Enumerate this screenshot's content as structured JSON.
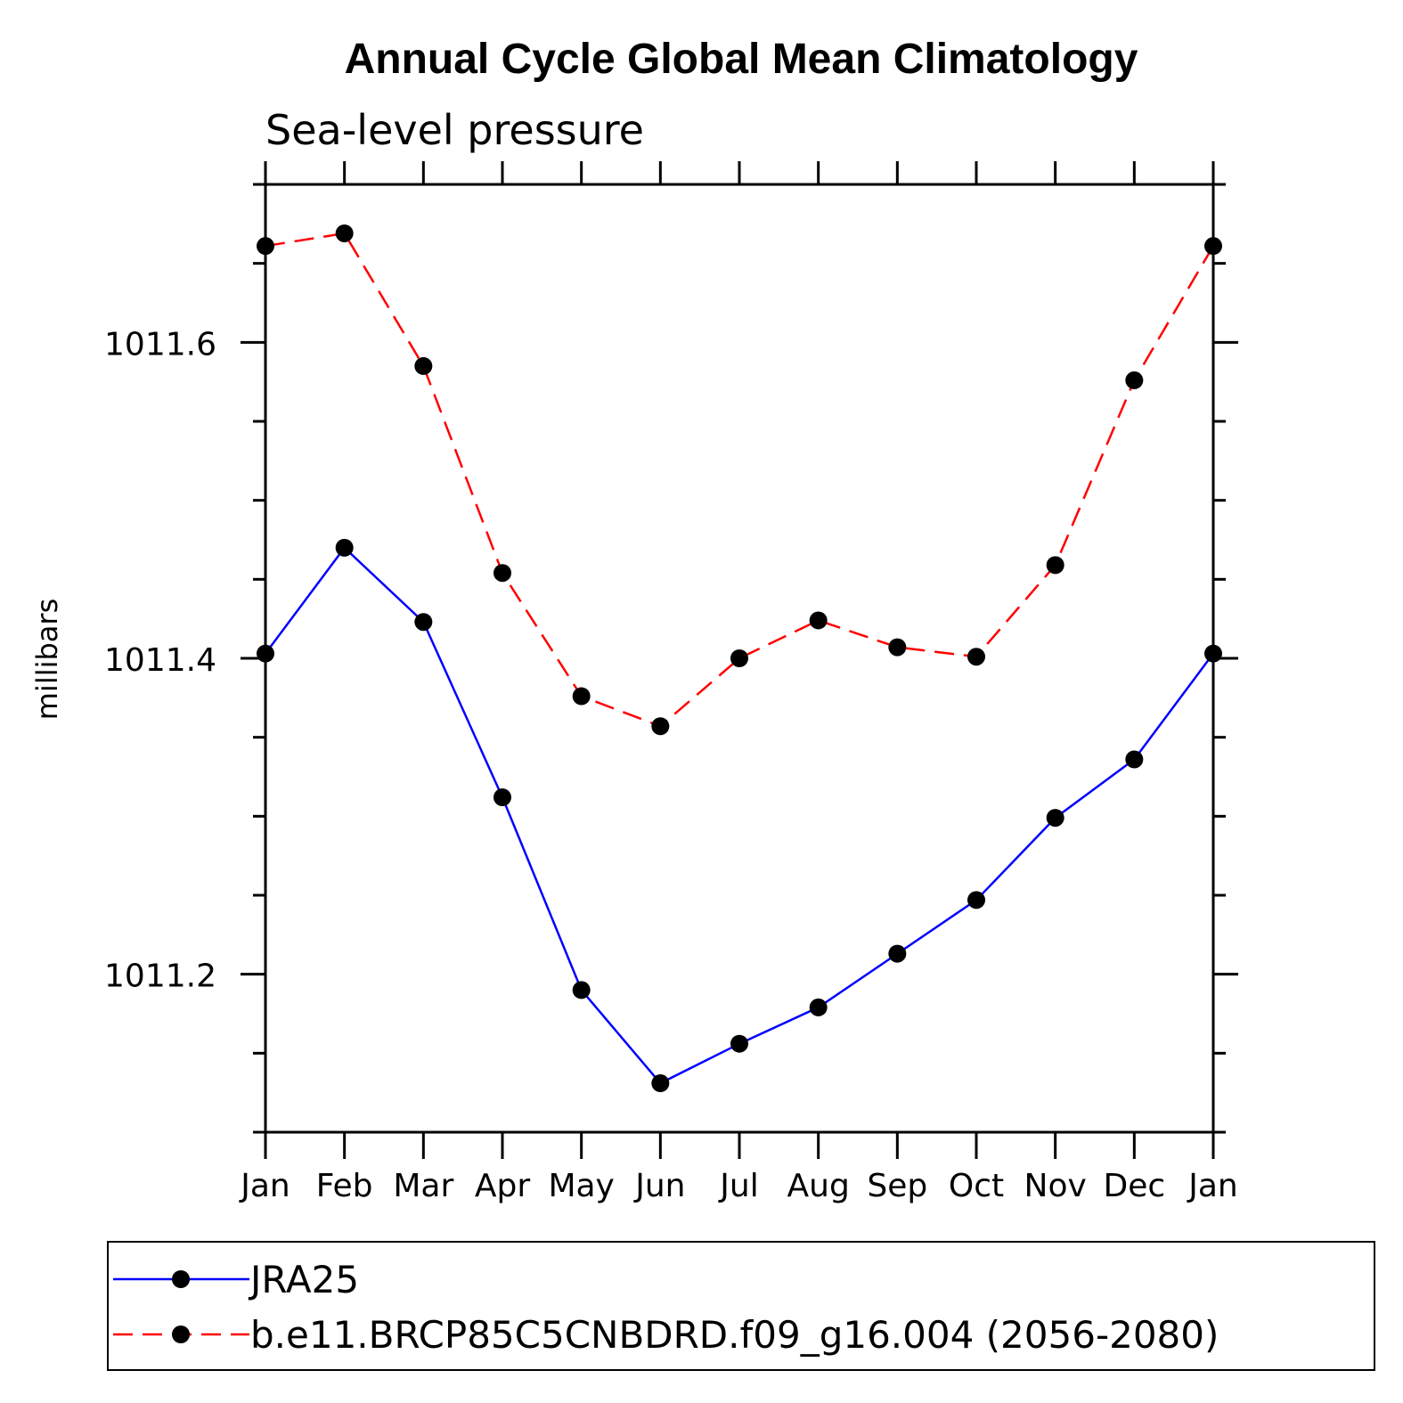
{
  "chart_data": {
    "type": "line",
    "title": "Annual Cycle Global Mean Climatology",
    "subtitle": "Sea-level pressure",
    "xlabel": "",
    "ylabel": "millibars",
    "categories": [
      "Jan",
      "Feb",
      "Mar",
      "Apr",
      "May",
      "Jun",
      "Jul",
      "Aug",
      "Sep",
      "Oct",
      "Nov",
      "Dec",
      "Jan"
    ],
    "ylim": [
      1011.1,
      1011.7
    ],
    "yticks": [
      1011.2,
      1011.4,
      1011.6
    ],
    "ytick_labels": [
      "1011.2",
      "1011.4",
      "1011.6"
    ],
    "grid": false,
    "legend_position": "bottom",
    "series": [
      {
        "name": "JRA25",
        "color": "#0000ff",
        "line_style": "solid",
        "marker": "filled-circle",
        "values": [
          1011.403,
          1011.47,
          1011.423,
          1011.312,
          1011.19,
          1011.131,
          1011.156,
          1011.179,
          1011.213,
          1011.247,
          1011.299,
          1011.336,
          1011.403
        ]
      },
      {
        "name": "b.e11.BRCP85C5CNBDRD.f09_g16.004 (2056-2080)",
        "color": "#ff0000",
        "line_style": "dashed",
        "marker": "filled-circle",
        "values": [
          1011.661,
          1011.669,
          1011.585,
          1011.454,
          1011.376,
          1011.357,
          1011.4,
          1011.424,
          1011.407,
          1011.401,
          1011.459,
          1011.576,
          1011.661
        ]
      }
    ]
  }
}
